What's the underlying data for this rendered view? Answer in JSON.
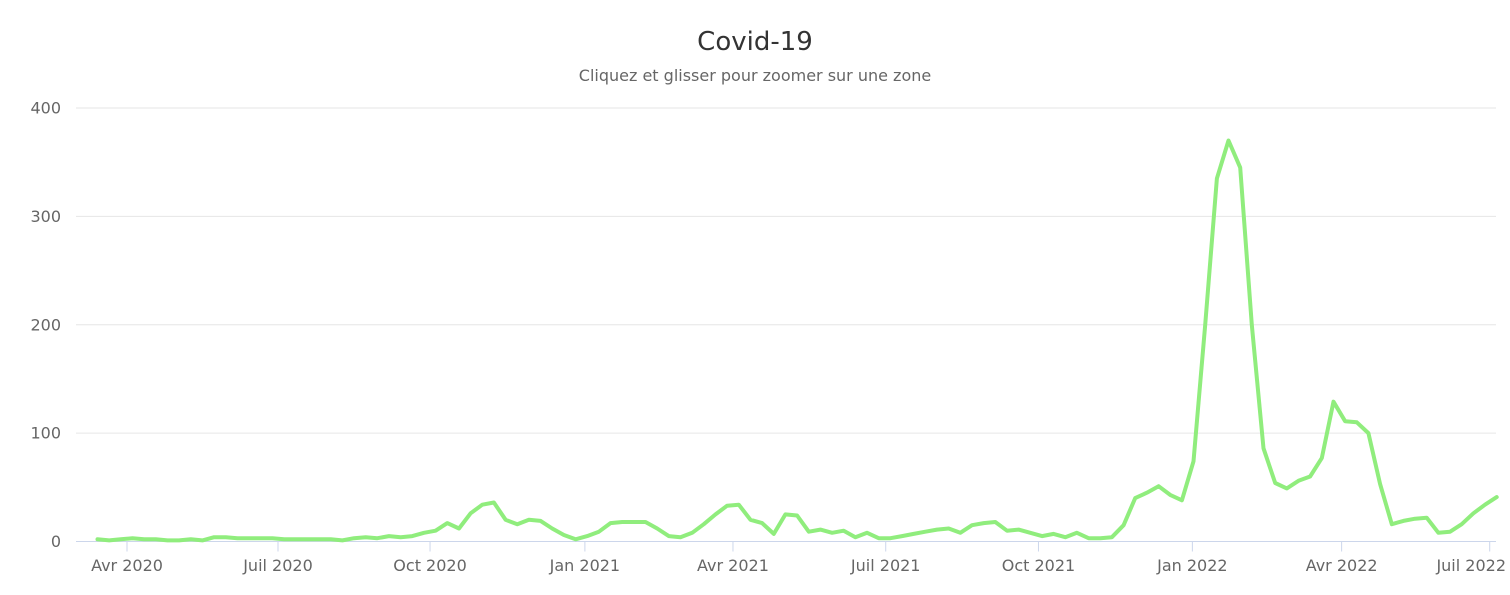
{
  "chart_data": {
    "type": "line",
    "title": "Covid-19",
    "subtitle": "Cliquez et glisser pour zoomer sur une zone",
    "x_unit": "week",
    "x_range_labels": [
      "Avr 2020",
      "Juil 2022"
    ],
    "ylim": [
      0,
      400
    ],
    "y_ticks": [
      0,
      100,
      200,
      300,
      400
    ],
    "x_ticks": [
      {
        "label": "Avr 2020",
        "week": 2.53
      },
      {
        "label": "Juil 2020",
        "week": 15.48
      },
      {
        "label": "Oct 2020",
        "week": 28.52
      },
      {
        "label": "Jan 2021",
        "week": 41.8
      },
      {
        "label": "Avr 2021",
        "week": 54.5
      },
      {
        "label": "Juil 2021",
        "week": 67.6
      },
      {
        "label": "Oct 2021",
        "week": 80.7
      },
      {
        "label": "Jan 2022",
        "week": 93.9
      },
      {
        "label": "Avr 2022",
        "week": 106.7
      },
      {
        "label": "Juil 2022",
        "week": 119.4
      }
    ],
    "grid": true,
    "legend": "none",
    "series": [
      {
        "name": "Covid-19",
        "color": "#90ed7d",
        "values": [
          2,
          1,
          2,
          3,
          2,
          2,
          1,
          1,
          2,
          1,
          4,
          4,
          3,
          3,
          3,
          3,
          2,
          2,
          2,
          2,
          2,
          1,
          3,
          4,
          3,
          5,
          4,
          5,
          8,
          10,
          17,
          12,
          26,
          34,
          36,
          20,
          16,
          20,
          19,
          12,
          6,
          2,
          5,
          9,
          17,
          18,
          18,
          18,
          12,
          5,
          4,
          8,
          16,
          25,
          33,
          34,
          20,
          17,
          7,
          25,
          24,
          9,
          11,
          8,
          10,
          4,
          8,
          3,
          3,
          5,
          7,
          9,
          11,
          12,
          8,
          15,
          17,
          18,
          10,
          11,
          8,
          5,
          7,
          4,
          8,
          3,
          3,
          4,
          15,
          40,
          45,
          51,
          43,
          38,
          74,
          200,
          335,
          370,
          345,
          200,
          86,
          54,
          49,
          56,
          60,
          77,
          129,
          111,
          110,
          100,
          53,
          16,
          19,
          21,
          22,
          8,
          9,
          16,
          26,
          34,
          41
        ]
      }
    ],
    "colors": {
      "line": "#90ed7d",
      "grid": "#e6e6e6",
      "axis": "#ccd6eb",
      "title": "#333333",
      "text": "#666666",
      "background": "#ffffff"
    }
  }
}
